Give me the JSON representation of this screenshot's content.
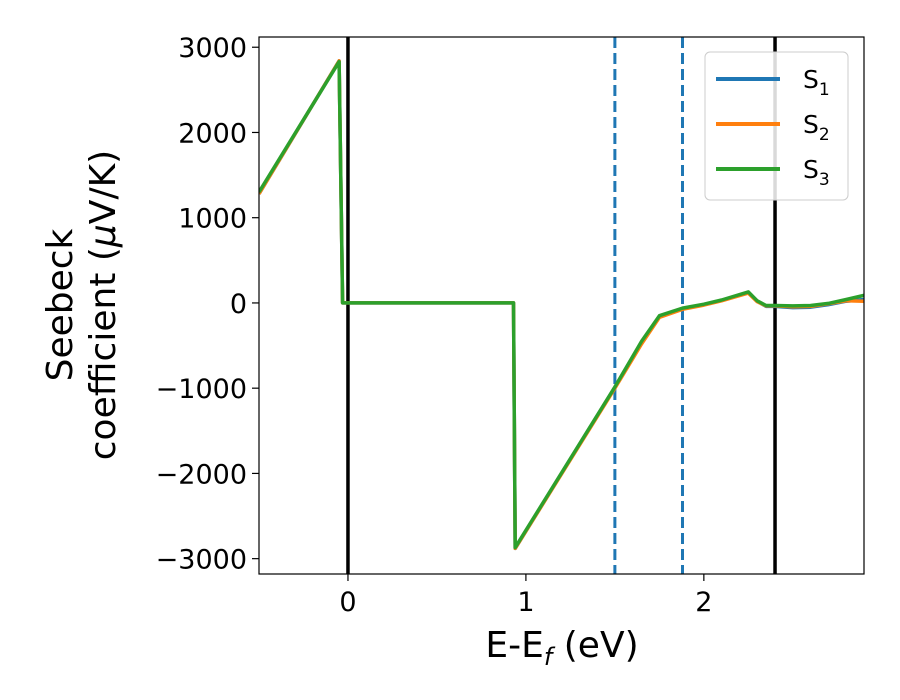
{
  "chart_data": {
    "type": "line",
    "xlabel": {
      "main": "E-E",
      "sub": "f",
      "unit": " (eV)"
    },
    "ylabel": {
      "line1": "Seebeck",
      "line2_pre": "coefficient  (",
      "line2_mu": "μ",
      "line2_post": "V/K)"
    },
    "xlim": [
      -0.5,
      2.9
    ],
    "ylim": [
      -3180,
      3120
    ],
    "x_ticks": [
      0,
      1,
      2
    ],
    "x_tick_labels": [
      "0",
      "1",
      "2"
    ],
    "y_ticks": [
      3000,
      2000,
      1000,
      0,
      -1000,
      -2000,
      -3000
    ],
    "y_tick_labels": [
      "3000",
      "2000",
      "1000",
      "0",
      "−1000",
      "−2000",
      "−3000"
    ],
    "vlines": [
      {
        "x": 0.0,
        "style": "solid",
        "color": "#000000"
      },
      {
        "x": 2.4,
        "style": "solid",
        "color": "#000000"
      },
      {
        "x": 1.5,
        "style": "dashed",
        "color": "#1f77b4"
      },
      {
        "x": 1.88,
        "style": "dashed",
        "color": "#1f77b4"
      }
    ],
    "legend_position": "top-right",
    "series": [
      {
        "name": "S",
        "sub": "1",
        "color": "#1f77b4",
        "x": [
          -0.5,
          -0.05,
          -0.03,
          0.0,
          0.93,
          0.94,
          1.5,
          1.65,
          1.75,
          1.88,
          2.0,
          2.1,
          2.25,
          2.3,
          2.35,
          2.4,
          2.5,
          2.6,
          2.7,
          2.8,
          2.9
        ],
        "y": [
          1280,
          2840,
          0,
          0,
          0,
          -2880,
          -990,
          -460,
          -160,
          -70,
          -20,
          30,
          120,
          20,
          -40,
          -40,
          -55,
          -50,
          -20,
          20,
          40
        ]
      },
      {
        "name": "S",
        "sub": "2",
        "color": "#ff7f0e",
        "x": [
          -0.5,
          -0.05,
          -0.03,
          0.0,
          0.93,
          0.94,
          1.5,
          1.65,
          1.75,
          1.88,
          2.0,
          2.1,
          2.25,
          2.3,
          2.35,
          2.4,
          2.5,
          2.6,
          2.7,
          2.8,
          2.9
        ],
        "y": [
          1280,
          2840,
          0,
          0,
          0,
          -2880,
          -1000,
          -480,
          -170,
          -75,
          -25,
          25,
          115,
          15,
          -35,
          -35,
          -45,
          -40,
          -10,
          25,
          20
        ]
      },
      {
        "name": "S",
        "sub": "3",
        "color": "#2ca02c",
        "x": [
          -0.5,
          -0.05,
          -0.03,
          0.0,
          0.93,
          0.94,
          1.5,
          1.65,
          1.75,
          1.88,
          2.0,
          2.1,
          2.25,
          2.3,
          2.35,
          2.4,
          2.5,
          2.6,
          2.7,
          2.8,
          2.9
        ],
        "y": [
          1300,
          2830,
          0,
          0,
          0,
          -2870,
          -985,
          -450,
          -150,
          -60,
          -15,
          35,
          130,
          25,
          -30,
          -30,
          -35,
          -30,
          -5,
          40,
          90
        ]
      }
    ]
  }
}
